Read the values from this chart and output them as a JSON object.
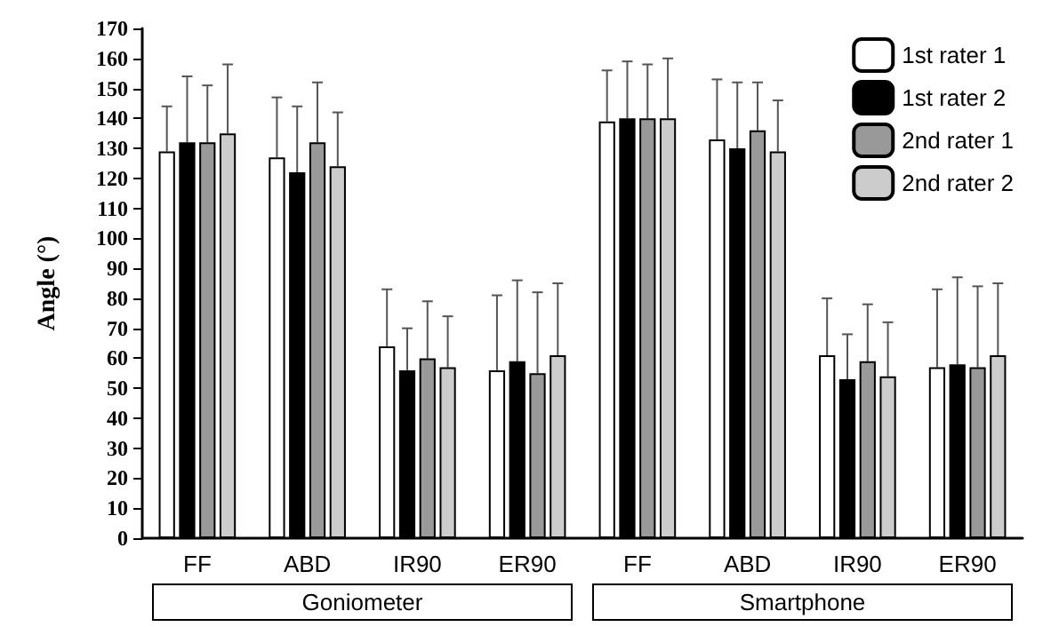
{
  "chart_data": {
    "type": "bar",
    "ylabel": "Angle (°)",
    "categories": [
      "FF",
      "ABD",
      "IR90",
      "ER90",
      "FF",
      "ABD",
      "IR90",
      "ER90"
    ],
    "series": [
      {
        "name": "1st rater 1",
        "color": "#ffffff",
        "values": [
          129,
          127,
          64,
          56,
          139,
          133,
          61,
          57
        ],
        "errors": [
          [
            129,
            144
          ],
          [
            127,
            147
          ],
          [
            64,
            83
          ],
          [
            56,
            81
          ],
          [
            139,
            156
          ],
          [
            133,
            153
          ],
          [
            61,
            80
          ],
          [
            57,
            83
          ]
        ]
      },
      {
        "name": "1st rater 2",
        "color": "#000000",
        "values": [
          132,
          122,
          56,
          59,
          140,
          130,
          53,
          58
        ],
        "errors": [
          [
            132,
            154
          ],
          [
            122,
            144
          ],
          [
            56,
            70
          ],
          [
            59,
            86
          ],
          [
            140,
            159
          ],
          [
            130,
            152
          ],
          [
            53,
            68
          ],
          [
            58,
            87
          ]
        ]
      },
      {
        "name": "2nd rater 1",
        "color": "#999999",
        "values": [
          132,
          132,
          60,
          55,
          140,
          136,
          59,
          57
        ],
        "errors": [
          [
            132,
            151
          ],
          [
            132,
            152
          ],
          [
            60,
            79
          ],
          [
            55,
            82
          ],
          [
            140,
            158
          ],
          [
            136,
            152
          ],
          [
            59,
            78
          ],
          [
            57,
            84
          ]
        ]
      },
      {
        "name": "2nd rater 2",
        "color": "#cccccc",
        "values": [
          135,
          124,
          57,
          61,
          140,
          129,
          54,
          61
        ],
        "errors": [
          [
            135,
            158
          ],
          [
            124,
            142
          ],
          [
            57,
            74
          ],
          [
            61,
            85
          ],
          [
            140,
            160
          ],
          [
            129,
            146
          ],
          [
            54,
            72
          ],
          [
            61,
            85
          ]
        ]
      }
    ],
    "ylim": [
      0,
      170
    ],
    "yticks": [
      0,
      10,
      20,
      30,
      40,
      50,
      60,
      70,
      80,
      90,
      100,
      110,
      120,
      130,
      140,
      150,
      160,
      170
    ],
    "grid": false,
    "legend": "top right",
    "annotations": [
      "Goniometer",
      "Smartphone"
    ]
  }
}
